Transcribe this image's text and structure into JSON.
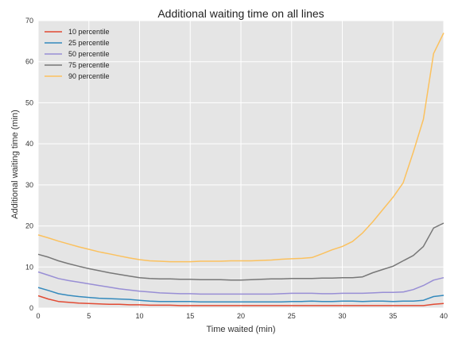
{
  "chart_data": {
    "type": "line",
    "title": "Additional waiting time on all lines",
    "xlabel": "Time waited (min)",
    "ylabel": "Additional waiting time (min)",
    "xlim": [
      0,
      40
    ],
    "ylim": [
      0,
      70
    ],
    "xticks": [
      "0",
      "5",
      "10",
      "15",
      "20",
      "25",
      "30",
      "35",
      "40"
    ],
    "yticks": [
      "0",
      "10",
      "20",
      "30",
      "40",
      "50",
      "60",
      "70"
    ],
    "grid": true,
    "legend_position": "top-left",
    "x": [
      0,
      1,
      2,
      3,
      4,
      5,
      6,
      7,
      8,
      9,
      10,
      11,
      12,
      13,
      14,
      15,
      16,
      17,
      18,
      19,
      20,
      21,
      22,
      23,
      24,
      25,
      26,
      27,
      28,
      29,
      30,
      31,
      32,
      33,
      34,
      35,
      36,
      37,
      38,
      39,
      40
    ],
    "series": [
      {
        "name": "10 percentile",
        "color": "#e24a33",
        "values": [
          3.0,
          2.2,
          1.6,
          1.4,
          1.2,
          1.1,
          1.0,
          0.9,
          0.9,
          0.8,
          0.8,
          0.7,
          0.7,
          0.7,
          0.6,
          0.6,
          0.6,
          0.6,
          0.6,
          0.6,
          0.6,
          0.6,
          0.6,
          0.6,
          0.6,
          0.6,
          0.6,
          0.6,
          0.6,
          0.6,
          0.6,
          0.6,
          0.6,
          0.6,
          0.6,
          0.6,
          0.6,
          0.6,
          0.6,
          0.9,
          1.1
        ]
      },
      {
        "name": "25 percentile",
        "color": "#348abd",
        "values": [
          5.0,
          4.3,
          3.5,
          3.1,
          2.8,
          2.6,
          2.4,
          2.3,
          2.2,
          2.1,
          1.9,
          1.7,
          1.6,
          1.6,
          1.6,
          1.6,
          1.5,
          1.5,
          1.5,
          1.5,
          1.5,
          1.5,
          1.5,
          1.5,
          1.5,
          1.6,
          1.6,
          1.7,
          1.6,
          1.6,
          1.7,
          1.7,
          1.6,
          1.7,
          1.7,
          1.6,
          1.7,
          1.7,
          1.9,
          2.8,
          3.1
        ]
      },
      {
        "name": "50 percentile",
        "color": "#988ed5",
        "values": [
          8.8,
          8.0,
          7.2,
          6.7,
          6.3,
          5.9,
          5.5,
          5.1,
          4.7,
          4.4,
          4.1,
          3.9,
          3.7,
          3.6,
          3.5,
          3.5,
          3.4,
          3.4,
          3.4,
          3.4,
          3.4,
          3.4,
          3.4,
          3.4,
          3.5,
          3.6,
          3.6,
          3.6,
          3.5,
          3.5,
          3.6,
          3.6,
          3.6,
          3.7,
          3.8,
          3.8,
          3.9,
          4.5,
          5.5,
          6.8,
          7.4
        ]
      },
      {
        "name": "75 percentile",
        "color": "#777777",
        "values": [
          13.1,
          12.4,
          11.5,
          10.8,
          10.2,
          9.6,
          9.1,
          8.6,
          8.2,
          7.8,
          7.4,
          7.2,
          7.1,
          7.1,
          7.0,
          7.0,
          6.9,
          6.9,
          6.9,
          6.8,
          6.8,
          6.9,
          7.0,
          7.1,
          7.1,
          7.2,
          7.2,
          7.2,
          7.3,
          7.3,
          7.4,
          7.4,
          7.6,
          8.6,
          9.4,
          10.2,
          11.5,
          12.8,
          15.0,
          19.5,
          20.7
        ]
      },
      {
        "name": "90 percentile",
        "color": "#fbc15e",
        "values": [
          17.8,
          17.1,
          16.3,
          15.6,
          14.9,
          14.3,
          13.7,
          13.2,
          12.7,
          12.2,
          11.8,
          11.5,
          11.4,
          11.3,
          11.3,
          11.3,
          11.4,
          11.4,
          11.4,
          11.5,
          11.5,
          11.5,
          11.6,
          11.7,
          11.9,
          12.0,
          12.1,
          12.3,
          13.2,
          14.2,
          15.0,
          16.2,
          18.3,
          21.0,
          24.0,
          27.0,
          30.5,
          38.0,
          46.0,
          62.0,
          67.0
        ]
      }
    ]
  }
}
